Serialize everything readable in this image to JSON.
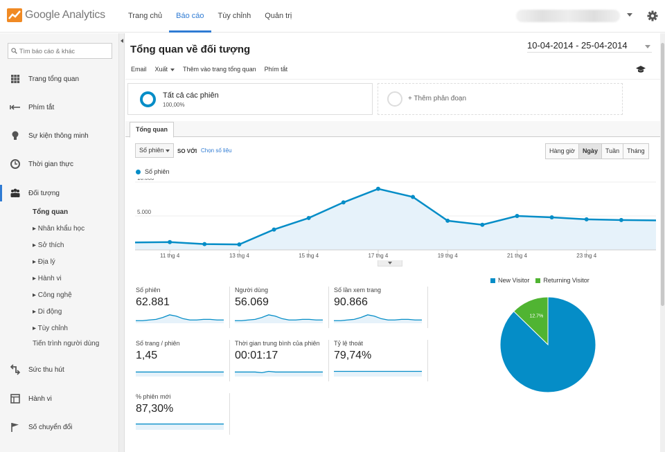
{
  "app": {
    "name": "Google Analytics",
    "colors": {
      "accent": "#2f7bd3",
      "series": "#058dc7",
      "returning": "#50b432"
    }
  },
  "nav": {
    "items": [
      {
        "label": "Trang chủ",
        "active": false
      },
      {
        "label": "Báo cáo",
        "active": true
      },
      {
        "label": "Tùy chỉnh",
        "active": false
      },
      {
        "label": "Quản trị",
        "active": false
      }
    ]
  },
  "sidebar": {
    "search_placeholder": "Tìm báo cáo & khác",
    "items": [
      {
        "label": "Trang tổng quan",
        "icon": "grid-icon"
      },
      {
        "label": "Phím tắt",
        "icon": "shortcut-arrow-icon"
      },
      {
        "label": "Sự kiện thông minh",
        "icon": "lightbulb-icon"
      },
      {
        "label": "Thời gian thực",
        "icon": "clock-icon"
      },
      {
        "label": "Đối tượng",
        "icon": "people-icon",
        "active": true
      },
      {
        "label": "Sức thu hút",
        "icon": "acquisition-arrows-icon"
      },
      {
        "label": "Hành vi",
        "icon": "behavior-window-icon"
      },
      {
        "label": "Số chuyển đổi",
        "icon": "flag-icon"
      }
    ],
    "audience_sub": [
      "Tổng quan",
      "▸ Nhân khẩu học",
      "▸ Sở thích",
      "▸ Địa lý",
      "▸ Hành vi",
      "▸ Công nghệ",
      "▸ Di động",
      "▸ Tùy chỉnh",
      "Tiến trình người dùng"
    ]
  },
  "page": {
    "title": "Tổng quan về đối tượng",
    "date_range": "10-04-2014 - 25-04-2014",
    "toolbar": {
      "email": "Email",
      "export": "Xuất",
      "add_dashboard": "Thêm vào trang tổng quan",
      "shortcut": "Phím tắt"
    },
    "segments": {
      "all_sessions": "Tất cả các phiên",
      "all_sessions_pct": "100,00%",
      "add_segment": "+ Thêm phân đoạn"
    },
    "tab": "Tổng quan",
    "metric_select": "Số phiên",
    "compare_vs": "so với",
    "choose_metric": "Chọn số liệu",
    "periods": [
      {
        "label": "Hàng giờ",
        "active": false
      },
      {
        "label": "Ngày",
        "active": true
      },
      {
        "label": "Tuần",
        "active": false
      },
      {
        "label": "Tháng",
        "active": false
      }
    ],
    "series_legend": "Số phiên"
  },
  "chart_data": {
    "type": "area",
    "series": [
      {
        "name": "Số phiên",
        "x": [
          "10 thg 4",
          "11 thg 4",
          "12 thg 4",
          "13 thg 4",
          "14 thg 4",
          "15 thg 4",
          "16 thg 4",
          "17 thg 4",
          "18 thg 4",
          "19 thg 4",
          "20 thg 4",
          "21 thg 4",
          "22 thg 4",
          "23 thg 4",
          "24 thg 4",
          "25 thg 4"
        ],
        "values": [
          1100,
          1150,
          850,
          800,
          3000,
          4700,
          7000,
          9000,
          7800,
          4300,
          3700,
          5000,
          4800,
          4500,
          4400,
          4350
        ]
      }
    ],
    "x_tick_labels": [
      "11 thg 4",
      "13 thg 4",
      "15 thg 4",
      "17 thg 4",
      "19 thg 4",
      "21 thg 4",
      "23 thg 4"
    ],
    "y_tick_labels": [
      "10.000",
      "5.000"
    ],
    "ylim": [
      0,
      10000
    ],
    "grid": true
  },
  "metrics": [
    {
      "label": "Số phiên",
      "value": "62.881",
      "spark": [
        3,
        3,
        4,
        5,
        8,
        12,
        10,
        6,
        4,
        4,
        5,
        5,
        4,
        4
      ]
    },
    {
      "label": "Người dùng",
      "value": "56.069",
      "spark": [
        3,
        3,
        4,
        5,
        8,
        12,
        10,
        6,
        4,
        4,
        5,
        5,
        4,
        4
      ]
    },
    {
      "label": "Số lần xem trang",
      "value": "90.866",
      "spark": [
        3,
        3,
        4,
        5,
        8,
        12,
        10,
        6,
        4,
        4,
        5,
        5,
        4,
        4
      ]
    },
    {
      "label": "Số trang / phiên",
      "value": "1,45",
      "spark": [
        6,
        6,
        6,
        6,
        6,
        6,
        6,
        6,
        6,
        6,
        6,
        6,
        6,
        6
      ]
    },
    {
      "label": "Thời gian trung bình của phiên",
      "value": "00:01:17",
      "spark": [
        6,
        6,
        6,
        6,
        5,
        7,
        6,
        6,
        6,
        6,
        6,
        6,
        6,
        6
      ]
    },
    {
      "label": "Tỷ lệ thoát",
      "value": "79,74%",
      "spark": [
        7,
        7,
        7,
        7,
        7,
        7,
        7,
        7,
        7,
        7,
        7,
        7,
        7,
        7
      ]
    },
    {
      "label": "% phiên mới",
      "value": "87,30%",
      "spark": [
        8,
        8,
        8,
        8,
        8,
        8,
        8,
        8,
        8,
        8,
        8,
        8,
        8,
        8
      ]
    }
  ],
  "pie": {
    "legend": [
      {
        "label": "New Visitor",
        "color": "#058dc7"
      },
      {
        "label": "Returning Visitor",
        "color": "#50b432"
      }
    ],
    "slices": [
      {
        "label": "87.3%",
        "value": 87.3,
        "color": "#058dc7"
      },
      {
        "label": "12.7%",
        "value": 12.7,
        "color": "#50b432"
      }
    ]
  }
}
